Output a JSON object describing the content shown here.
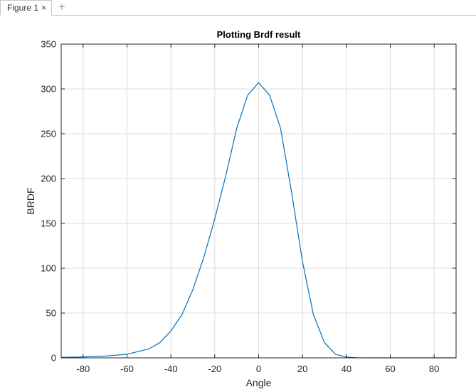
{
  "window": {
    "tab_label": "Figure 1",
    "close_icon": "×",
    "add_icon": "+"
  },
  "colors": {
    "line": "#0072BD",
    "grid": "#dcdcdc",
    "axes": "#262626"
  },
  "chart_data": {
    "type": "line",
    "title": "Plotting Brdf result",
    "xlabel": "Angle",
    "ylabel": "BRDF",
    "xlim": [
      -90,
      90
    ],
    "ylim": [
      0,
      350
    ],
    "xticks": [
      -80,
      -60,
      -40,
      -20,
      0,
      20,
      40,
      60,
      80
    ],
    "yticks": [
      0,
      50,
      100,
      150,
      200,
      250,
      300,
      350
    ],
    "grid": true,
    "series": [
      {
        "x": [
          -90,
          -80,
          -70,
          -60,
          -50,
          -45,
          -40,
          -35,
          -30,
          -25,
          -20,
          -15,
          -10,
          -5,
          0,
          5,
          10,
          15,
          20,
          25,
          30,
          35,
          40,
          45,
          50,
          60,
          70,
          80,
          90
        ],
        "values": [
          0.5,
          1,
          2,
          4,
          10,
          17,
          30,
          48,
          76,
          112,
          155,
          203,
          256,
          293,
          307,
          293,
          256,
          185,
          107,
          48,
          17,
          4,
          0.8,
          0.1,
          0,
          0,
          0,
          0,
          0
        ]
      }
    ]
  }
}
